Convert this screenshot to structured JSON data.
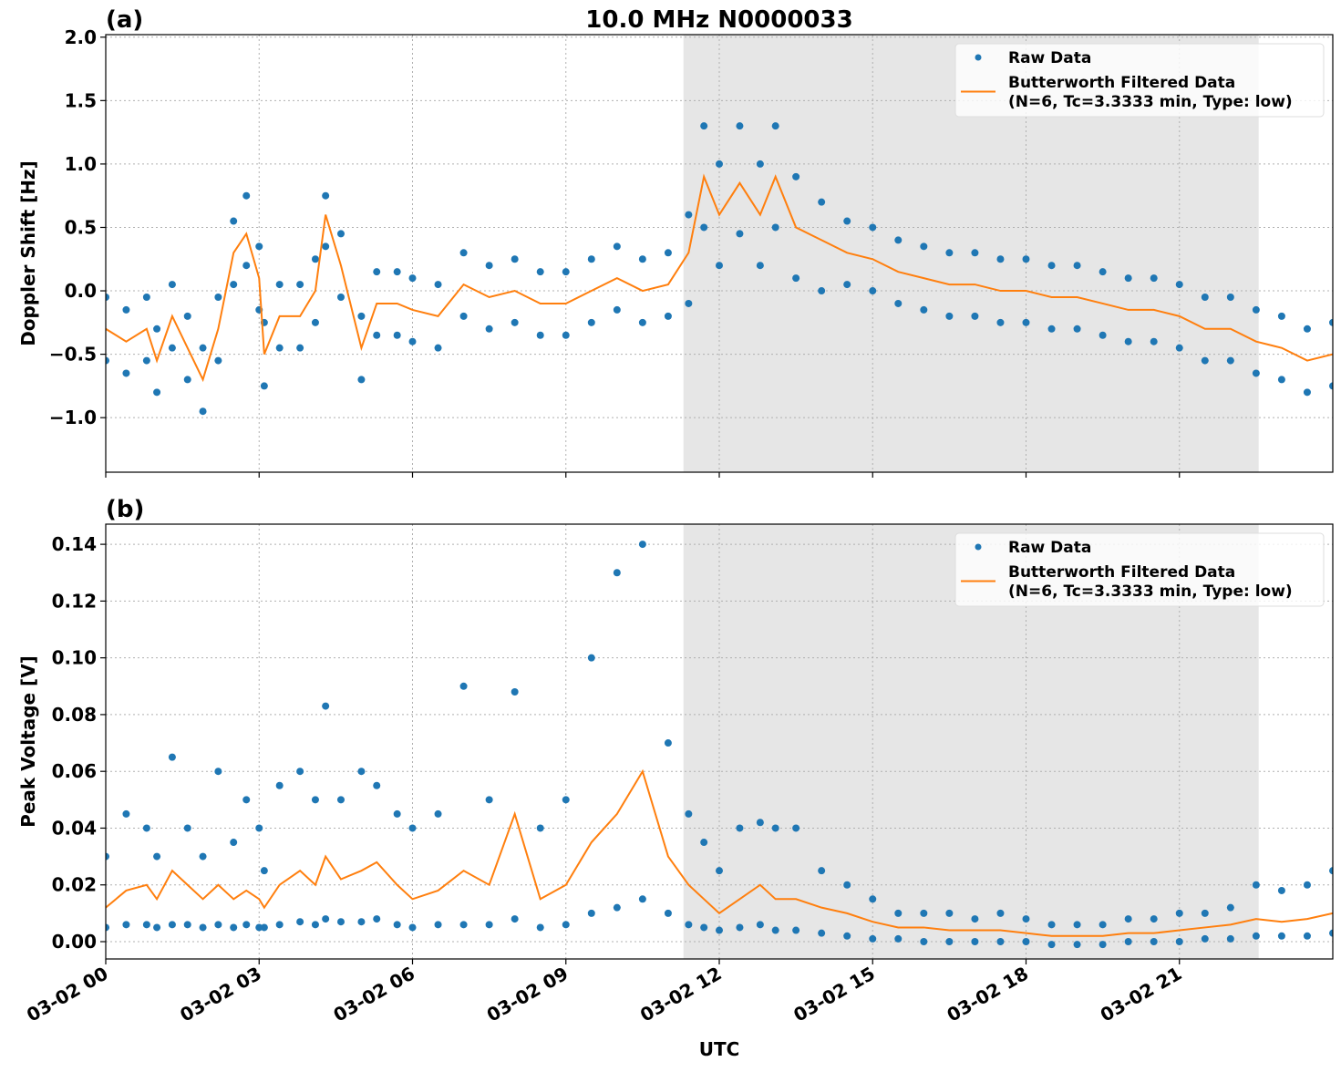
{
  "chart_data": [
    {
      "type": "line",
      "title": "10.0 MHz N0000033",
      "panel_label": "(a)",
      "ylabel": "Doppler Shift [Hz]",
      "xlim": [
        0,
        24
      ],
      "xticks": [
        0,
        3,
        6,
        9,
        12,
        15,
        18,
        21
      ],
      "ylim": [
        -1.43,
        2.02
      ],
      "yticks": [
        {
          "value": -1,
          "label": "−1.0"
        },
        {
          "value": -0.5,
          "label": "−0.5"
        },
        {
          "value": 0,
          "label": "0.0"
        },
        {
          "value": 0.5,
          "label": "0.5"
        },
        {
          "value": 1,
          "label": "1.0"
        },
        {
          "value": 1.5,
          "label": "1.5"
        },
        {
          "value": 2,
          "label": "2.0"
        }
      ],
      "grid": true,
      "legend": "upper right",
      "shade": {
        "xmin": 11.3,
        "xmax": 22.55,
        "color": "#e6e6e6"
      },
      "series": [
        {
          "name": "Raw Data",
          "mode": "scatter",
          "color": "#1f77b4",
          "x": [
            0,
            0.4,
            0.8,
            1.0,
            1.3,
            1.6,
            1.9,
            2.2,
            2.5,
            2.75,
            3.0,
            3.1,
            3.4,
            3.8,
            4.1,
            4.3,
            4.6,
            5.0,
            5.3,
            5.7,
            6.0,
            6.5,
            7.0,
            7.5,
            8.0,
            8.5,
            9.0,
            9.5,
            10.0,
            10.5,
            11.0,
            11.4,
            11.7,
            12.0,
            12.4,
            12.8,
            13.1,
            13.5,
            14.0,
            14.5,
            15,
            15.5,
            16,
            16.5,
            17,
            17.5,
            18,
            18.5,
            19,
            19.5,
            20,
            20.5,
            21,
            21.5,
            22,
            22.5,
            23,
            23.5,
            24,
            0,
            0.4,
            0.8,
            1.0,
            1.3,
            1.6,
            1.9,
            2.2,
            2.5,
            2.75,
            3.0,
            3.1,
            3.4,
            3.8,
            4.1,
            4.3,
            4.6,
            5.0,
            5.3,
            5.7,
            6.0,
            6.5,
            7.0,
            7.5,
            8.0,
            8.5,
            9.0,
            9.5,
            10.0,
            10.5,
            11.0,
            11.4,
            11.7,
            12.0,
            12.4,
            12.8,
            13.1,
            13.5,
            14.0,
            14.5,
            15,
            15.5,
            16,
            16.5,
            17,
            17.5,
            18,
            18.5,
            19,
            19.5,
            20,
            20.5,
            21,
            21.5,
            22,
            22.5,
            23,
            23.5,
            24
          ],
          "values": [
            -0.05,
            -0.15,
            -0.05,
            -0.3,
            0.05,
            -0.2,
            -0.45,
            -0.05,
            0.55,
            0.75,
            0.35,
            -0.25,
            0.05,
            0.05,
            0.25,
            0.75,
            0.45,
            -0.2,
            0.15,
            0.15,
            0.1,
            0.05,
            0.3,
            0.2,
            0.25,
            0.15,
            0.15,
            0.25,
            0.35,
            0.25,
            0.3,
            0.6,
            1.3,
            1.0,
            1.3,
            1.0,
            1.3,
            0.9,
            0.7,
            0.55,
            0.5,
            0.4,
            0.35,
            0.3,
            0.3,
            0.25,
            0.25,
            0.2,
            0.2,
            0.15,
            0.1,
            0.1,
            0.05,
            -0.05,
            -0.05,
            -0.15,
            -0.2,
            -0.3,
            -0.25,
            -0.55,
            -0.65,
            -0.55,
            -0.8,
            -0.45,
            -0.7,
            -0.95,
            -0.55,
            0.05,
            0.2,
            -0.15,
            -0.75,
            -0.45,
            -0.45,
            -0.25,
            0.35,
            -0.05,
            -0.7,
            -0.35,
            -0.35,
            -0.4,
            -0.45,
            -0.2,
            -0.3,
            -0.25,
            -0.35,
            -0.35,
            -0.25,
            -0.15,
            -0.25,
            -0.2,
            -0.1,
            0.5,
            0.2,
            0.45,
            0.2,
            0.5,
            0.1,
            0.0,
            0.05,
            0.0,
            -0.1,
            -0.15,
            -0.2,
            -0.2,
            -0.25,
            -0.25,
            -0.3,
            -0.3,
            -0.35,
            -0.4,
            -0.4,
            -0.45,
            -0.55,
            -0.55,
            -0.65,
            -0.7,
            -0.8,
            -0.75
          ]
        },
        {
          "name": "Butterworth Filtered Data\n(N=6, Tc=3.3333 min, Type: low)",
          "mode": "line",
          "color": "#ff7f0e",
          "x": [
            0,
            0.4,
            0.8,
            1.0,
            1.3,
            1.6,
            1.9,
            2.2,
            2.5,
            2.75,
            3.0,
            3.1,
            3.4,
            3.8,
            4.1,
            4.3,
            4.6,
            5.0,
            5.3,
            5.7,
            6.0,
            6.5,
            7.0,
            7.5,
            8.0,
            8.5,
            9.0,
            9.5,
            10.0,
            10.5,
            11.0,
            11.4,
            11.7,
            12.0,
            12.4,
            12.8,
            13.1,
            13.5,
            14.0,
            14.5,
            15,
            15.5,
            16,
            16.5,
            17,
            17.5,
            18,
            18.5,
            19,
            19.5,
            20,
            20.5,
            21,
            21.5,
            22,
            22.5,
            23,
            23.5,
            24
          ],
          "values": [
            -0.3,
            -0.4,
            -0.3,
            -0.55,
            -0.2,
            -0.45,
            -0.7,
            -0.3,
            0.3,
            0.45,
            0.1,
            -0.5,
            -0.2,
            -0.2,
            0.0,
            0.6,
            0.2,
            -0.45,
            -0.1,
            -0.1,
            -0.15,
            -0.2,
            0.05,
            -0.05,
            0.0,
            -0.1,
            -0.1,
            0.0,
            0.1,
            0.0,
            0.05,
            0.3,
            0.9,
            0.6,
            0.85,
            0.6,
            0.9,
            0.5,
            0.4,
            0.3,
            0.25,
            0.15,
            0.1,
            0.05,
            0.05,
            0.0,
            0.0,
            -0.05,
            -0.05,
            -0.1,
            -0.15,
            -0.15,
            -0.2,
            -0.3,
            -0.3,
            -0.4,
            -0.45,
            -0.55,
            -0.5
          ]
        }
      ]
    },
    {
      "type": "line",
      "panel_label": "(b)",
      "ylabel": "Peak Voltage [V]",
      "xlabel": "UTC",
      "xlim": [
        0,
        24
      ],
      "xticks": [
        {
          "value": 0,
          "label": "03-02 00"
        },
        {
          "value": 3,
          "label": "03-02 03"
        },
        {
          "value": 6,
          "label": "03-02 06"
        },
        {
          "value": 9,
          "label": "03-02 09"
        },
        {
          "value": 12,
          "label": "03-02 12"
        },
        {
          "value": 15,
          "label": "03-02 15"
        },
        {
          "value": 18,
          "label": "03-02 18"
        },
        {
          "value": 21,
          "label": "03-02 21"
        }
      ],
      "ylim": [
        -0.0061,
        0.1471
      ],
      "yticks": [
        {
          "value": 0,
          "label": "0.00"
        },
        {
          "value": 0.02,
          "label": "0.02"
        },
        {
          "value": 0.04,
          "label": "0.04"
        },
        {
          "value": 0.06,
          "label": "0.06"
        },
        {
          "value": 0.08,
          "label": "0.08"
        },
        {
          "value": 0.1,
          "label": "0.10"
        },
        {
          "value": 0.12,
          "label": "0.12"
        },
        {
          "value": 0.14,
          "label": "0.14"
        }
      ],
      "grid": true,
      "legend": "upper right",
      "shade": {
        "xmin": 11.3,
        "xmax": 22.55,
        "color": "#e6e6e6"
      },
      "series": [
        {
          "name": "Raw Data",
          "mode": "scatter",
          "color": "#1f77b4",
          "x": [
            0,
            0.4,
            0.8,
            1.0,
            1.3,
            1.6,
            1.9,
            2.2,
            2.5,
            2.75,
            3.0,
            3.1,
            3.4,
            3.8,
            4.1,
            4.3,
            4.6,
            5.0,
            5.3,
            5.7,
            6.0,
            6.5,
            7.0,
            7.5,
            8.0,
            8.5,
            9.0,
            9.5,
            10.0,
            10.5,
            11.0,
            11.4,
            11.7,
            12.0,
            12.4,
            12.8,
            13.1,
            13.5,
            14.0,
            14.5,
            15,
            15.5,
            16,
            16.5,
            17,
            17.5,
            18,
            18.5,
            19,
            19.5,
            20,
            20.5,
            21,
            21.5,
            22,
            22.5,
            23,
            23.5,
            24,
            0,
            0.4,
            0.8,
            1.0,
            1.3,
            1.6,
            1.9,
            2.2,
            2.5,
            2.75,
            3.0,
            3.1,
            3.4,
            3.8,
            4.1,
            4.3,
            4.6,
            5.0,
            5.3,
            5.7,
            6.0,
            6.5,
            7.0,
            7.5,
            8.0,
            8.5,
            9.0,
            9.5,
            10.0,
            10.5,
            11.0,
            11.4,
            11.7,
            12.0,
            12.4,
            12.8,
            13.1,
            13.5,
            14.0,
            14.5,
            15,
            15.5,
            16,
            16.5,
            17,
            17.5,
            18,
            18.5,
            19,
            19.5,
            20,
            20.5,
            21,
            21.5,
            22,
            22.5,
            23,
            23.5,
            24
          ],
          "values": [
            0.03,
            0.045,
            0.04,
            0.03,
            0.065,
            0.04,
            0.03,
            0.06,
            0.035,
            0.05,
            0.04,
            0.025,
            0.055,
            0.06,
            0.05,
            0.083,
            0.05,
            0.06,
            0.055,
            0.045,
            0.04,
            0.045,
            0.09,
            0.05,
            0.088,
            0.04,
            0.05,
            0.1,
            0.13,
            0.14,
            0.07,
            0.045,
            0.035,
            0.025,
            0.04,
            0.042,
            0.04,
            0.04,
            0.025,
            0.02,
            0.015,
            0.01,
            0.01,
            0.01,
            0.008,
            0.01,
            0.008,
            0.006,
            0.006,
            0.006,
            0.008,
            0.008,
            0.01,
            0.01,
            0.012,
            0.02,
            0.018,
            0.02,
            0.025,
            0.005,
            0.006,
            0.006,
            0.005,
            0.006,
            0.006,
            0.005,
            0.006,
            0.005,
            0.006,
            0.005,
            0.005,
            0.006,
            0.007,
            0.006,
            0.008,
            0.007,
            0.007,
            0.008,
            0.006,
            0.005,
            0.006,
            0.006,
            0.006,
            0.008,
            0.005,
            0.006,
            0.01,
            0.012,
            0.015,
            0.01,
            0.006,
            0.005,
            0.004,
            0.005,
            0.006,
            0.004,
            0.004,
            0.003,
            0.002,
            0.001,
            0.001,
            0.0,
            0.0,
            0.0,
            0.0,
            0.0,
            -0.001,
            -0.001,
            -0.001,
            0.0,
            0.0,
            0.0,
            0.001,
            0.001,
            0.002,
            0.002,
            0.002,
            0.003
          ]
        },
        {
          "name": "Butterworth Filtered Data\n(N=6, Tc=3.3333 min, Type: low)",
          "mode": "line",
          "color": "#ff7f0e",
          "x": [
            0,
            0.4,
            0.8,
            1.0,
            1.3,
            1.6,
            1.9,
            2.2,
            2.5,
            2.75,
            3.0,
            3.1,
            3.4,
            3.8,
            4.1,
            4.3,
            4.6,
            5.0,
            5.3,
            5.7,
            6.0,
            6.5,
            7.0,
            7.5,
            8.0,
            8.5,
            9.0,
            9.5,
            10.0,
            10.5,
            11.0,
            11.4,
            11.7,
            12.0,
            12.4,
            12.8,
            13.1,
            13.5,
            14.0,
            14.5,
            15,
            15.5,
            16,
            16.5,
            17,
            17.5,
            18,
            18.5,
            19,
            19.5,
            20,
            20.5,
            21,
            21.5,
            22,
            22.5,
            23,
            23.5,
            24
          ],
          "values": [
            0.012,
            0.018,
            0.02,
            0.015,
            0.025,
            0.02,
            0.015,
            0.02,
            0.015,
            0.018,
            0.015,
            0.012,
            0.02,
            0.025,
            0.02,
            0.03,
            0.022,
            0.025,
            0.028,
            0.02,
            0.015,
            0.018,
            0.025,
            0.02,
            0.045,
            0.015,
            0.02,
            0.035,
            0.045,
            0.06,
            0.03,
            0.02,
            0.015,
            0.01,
            0.015,
            0.02,
            0.015,
            0.015,
            0.012,
            0.01,
            0.007,
            0.005,
            0.005,
            0.004,
            0.004,
            0.004,
            0.003,
            0.002,
            0.002,
            0.002,
            0.003,
            0.003,
            0.004,
            0.005,
            0.006,
            0.008,
            0.007,
            0.008,
            0.01
          ]
        }
      ]
    }
  ]
}
